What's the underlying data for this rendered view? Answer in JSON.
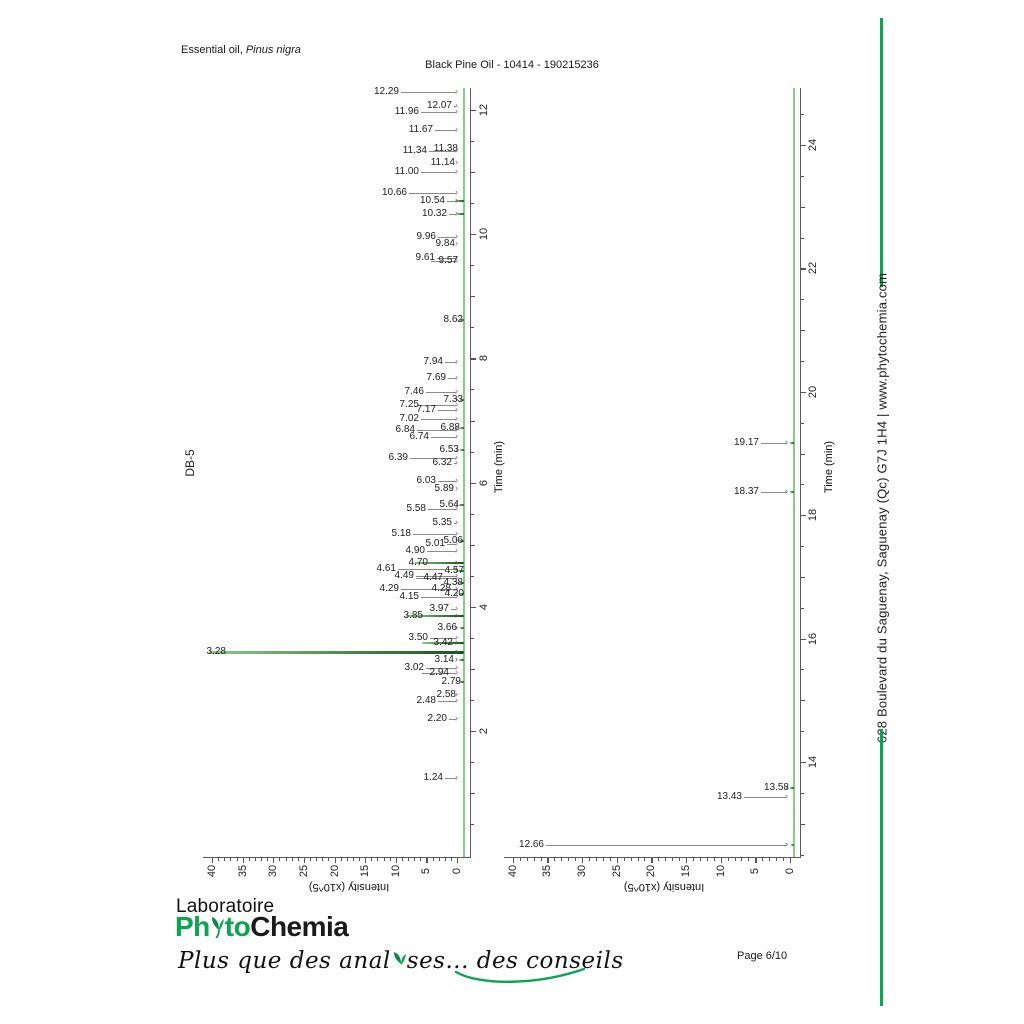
{
  "page": {
    "background": "#ffffff",
    "accent_green": "#0aa64f",
    "page_label": "Page 6/10"
  },
  "header": {
    "sample_prefix": "Essential oil, ",
    "sample_species": "Pinus nigra",
    "title": "Black Pine Oil - 10414 - 190215236",
    "column_label": "DB-5"
  },
  "sidebar": {
    "text": "628 Boulevard du Saguenay, Saguenay (Qc)  G7J 1H4  |  www.phytochemia.com"
  },
  "footer": {
    "lab": "Laboratoire",
    "logo_ph": "Ph",
    "logo_to": "to",
    "logo_chemia": "Chemia",
    "tagline_a": "Plus que des anal",
    "tagline_b": "ses... des conseils"
  },
  "chart_data": [
    {
      "type": "line",
      "name": "chromatogram-db5-early",
      "xlabel": "Time (min)",
      "ylabel": "Intensity (x10^5)",
      "time_range": [
        0,
        12.35
      ],
      "intensity_range": [
        0,
        40
      ],
      "time_ticks": [
        2,
        4,
        6,
        8,
        10,
        12
      ],
      "intensity_ticks": [
        0,
        5,
        10,
        15,
        20,
        25,
        30,
        35,
        40
      ],
      "peaks_columns": [
        "retention_time_min",
        "label_offset_px",
        "strikethrough",
        "peak_trace_px"
      ],
      "peaks": [
        [
          "12.29",
          65,
          0,
          0
        ],
        [
          "12.07",
          12,
          0,
          0
        ],
        [
          "11.96",
          45,
          0,
          0
        ],
        [
          "11.67",
          31,
          0,
          0
        ],
        [
          "11.38",
          6,
          0,
          0
        ],
        [
          "11.34",
          37,
          0,
          0
        ],
        [
          "11.14",
          9,
          0,
          0
        ],
        [
          "11.00",
          45,
          0,
          0
        ],
        [
          "10.66",
          57,
          0,
          0
        ],
        [
          "10.54",
          19,
          0,
          9
        ],
        [
          "10.32",
          17,
          0,
          7
        ],
        [
          "9.96",
          28,
          0,
          0
        ],
        [
          "9.84",
          9,
          0,
          0
        ],
        [
          "9.61",
          29,
          0,
          0
        ],
        [
          "9.57",
          6,
          1,
          0
        ],
        [
          "8.62",
          1,
          0,
          5
        ],
        [
          "7.94",
          21,
          0,
          0
        ],
        [
          "7.69",
          18,
          0,
          0
        ],
        [
          "7.46",
          40,
          0,
          0
        ],
        [
          "7.33",
          1,
          0,
          4
        ],
        [
          "7.25",
          45,
          0,
          0
        ],
        [
          "7.17",
          28,
          0,
          0
        ],
        [
          "7.02",
          45,
          0,
          0
        ],
        [
          "6.88",
          4,
          0,
          4
        ],
        [
          "6.84",
          49,
          0,
          0
        ],
        [
          "6.74",
          35,
          0,
          0
        ],
        [
          "6.53",
          5,
          0,
          4
        ],
        [
          "6.39",
          56,
          0,
          0
        ],
        [
          "6.32",
          12,
          0,
          0
        ],
        [
          "6.03",
          28,
          0,
          0
        ],
        [
          "5.89",
          10,
          0,
          0
        ],
        [
          "5.64",
          5,
          0,
          5
        ],
        [
          "5.58",
          38,
          0,
          0
        ],
        [
          "5.35",
          12,
          0,
          0
        ],
        [
          "5.18",
          53,
          0,
          0
        ],
        [
          "5.06",
          1,
          0,
          5
        ],
        [
          "5.01",
          19,
          0,
          0
        ],
        [
          "4.90",
          39,
          0,
          0
        ],
        [
          "4.70",
          36,
          1,
          50
        ],
        [
          "4.61",
          68,
          0,
          0
        ],
        [
          "4.57",
          0,
          1,
          6
        ],
        [
          "4.49",
          50,
          0,
          0
        ],
        [
          "4.47",
          21,
          1,
          0
        ],
        [
          "4.38",
          1,
          0,
          5
        ],
        [
          "4.29",
          65,
          0,
          0
        ],
        [
          "4.28",
          13,
          0,
          0
        ],
        [
          "4.20",
          0,
          0,
          5
        ],
        [
          "4.15",
          45,
          0,
          0
        ],
        [
          "3.97",
          15,
          0,
          0
        ],
        [
          "3.85",
          41,
          1,
          58
        ],
        [
          "3.66",
          7,
          0,
          4
        ],
        [
          "3.50",
          36,
          0,
          0
        ],
        [
          "3.42",
          11,
          1,
          42
        ],
        [
          "3.28",
          238,
          1,
          255
        ],
        [
          "3.14",
          10,
          0,
          5
        ],
        [
          "3.02",
          40,
          0,
          0
        ],
        [
          "2.94",
          15,
          1,
          0
        ],
        [
          "2.79",
          3,
          0,
          4
        ],
        [
          "2.58",
          8,
          0,
          0
        ],
        [
          "2.48",
          28,
          0,
          0
        ],
        [
          "2.20",
          17,
          0,
          0
        ],
        [
          "1.24",
          21,
          0,
          0
        ]
      ]
    },
    {
      "type": "line",
      "name": "chromatogram-db5-late",
      "xlabel": "Time (min)",
      "ylabel": "Intensity (x10^5)",
      "time_range": [
        12.47,
        24.9
      ],
      "intensity_range": [
        0,
        40
      ],
      "time_ticks": [
        14,
        16,
        18,
        20,
        22,
        24
      ],
      "intensity_ticks": [
        0,
        5,
        10,
        15,
        20,
        25,
        30,
        35,
        40
      ],
      "peaks_columns": [
        "retention_time_min",
        "label_offset_px",
        "strikethrough",
        "peak_trace_px"
      ],
      "peaks": [
        [
          "19.17",
          35,
          0,
          4
        ],
        [
          "18.37",
          35,
          0,
          4
        ],
        [
          "13.58",
          5,
          0,
          4
        ],
        [
          "13.43",
          52,
          0,
          0
        ],
        [
          "12.66",
          250,
          0,
          3
        ]
      ]
    }
  ]
}
